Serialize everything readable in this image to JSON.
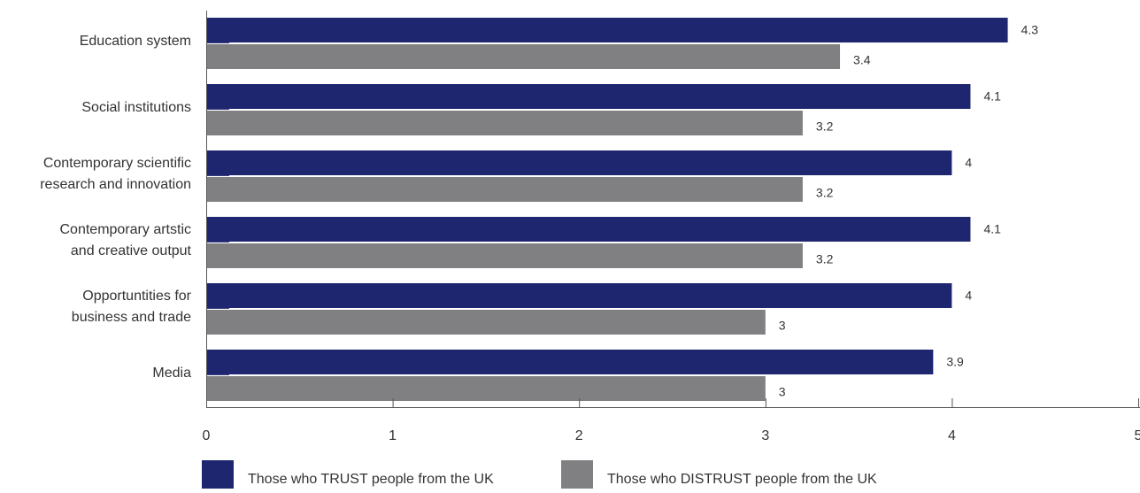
{
  "chart_data": {
    "type": "bar",
    "orientation": "horizontal",
    "title": "",
    "xlabel": "",
    "ylabel": "",
    "xlim": [
      0,
      5
    ],
    "x_ticks": [
      "0",
      "1",
      "2",
      "3",
      "4",
      "5"
    ],
    "grid": false,
    "legend_position": "bottom",
    "categories": [
      [
        "Education system"
      ],
      [
        "Social institutions"
      ],
      [
        "Contemporary scientific",
        "research and innovation"
      ],
      [
        "Contemporary artstic",
        "and creative output"
      ],
      [
        "Opportuntities for",
        "business and trade"
      ],
      [
        "Media"
      ]
    ],
    "series": [
      {
        "name": "Those who TRUST people from the UK",
        "color": "#1e2670",
        "values": [
          4.3,
          4.1,
          4,
          4.1,
          4,
          3.9
        ],
        "labels": [
          "4.3",
          "4.1",
          "4",
          "4.1",
          "4",
          "3.9"
        ]
      },
      {
        "name": "Those who DISTRUST people from the UK",
        "color": "#808083",
        "values": [
          3.4,
          3.2,
          3.2,
          3.2,
          3,
          3
        ],
        "labels": [
          "3.4",
          "3.2",
          "3.2",
          "3.2",
          "3",
          "3"
        ]
      }
    ],
    "colors": {
      "axis": "#555555",
      "text": "#333333"
    }
  }
}
